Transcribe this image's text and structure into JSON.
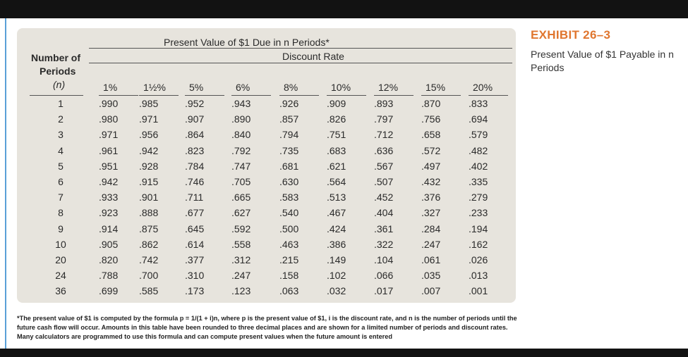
{
  "exhibit": {
    "title": "EXHIBIT 26–3",
    "caption": "Present Value of $1 Payable in n Periods"
  },
  "table": {
    "title": "Present Value of $1 Due in n Periods*",
    "subtitle": "Discount Rate",
    "row_header_line1": "Number of",
    "row_header_line2": "Periods",
    "row_header_line3": "(n)",
    "rates": [
      "1%",
      "1½%",
      "5%",
      "6%",
      "8%",
      "10%",
      "12%",
      "15%",
      "20%"
    ],
    "rows": [
      {
        "n": "1",
        "values": [
          ".990",
          ".985",
          ".952",
          ".943",
          ".926",
          ".909",
          ".893",
          ".870",
          ".833"
        ]
      },
      {
        "n": "2",
        "values": [
          ".980",
          ".971",
          ".907",
          ".890",
          ".857",
          ".826",
          ".797",
          ".756",
          ".694"
        ]
      },
      {
        "n": "3",
        "values": [
          ".971",
          ".956",
          ".864",
          ".840",
          ".794",
          ".751",
          ".712",
          ".658",
          ".579"
        ]
      },
      {
        "n": "4",
        "values": [
          ".961",
          ".942",
          ".823",
          ".792",
          ".735",
          ".683",
          ".636",
          ".572",
          ".482"
        ]
      },
      {
        "n": "5",
        "values": [
          ".951",
          ".928",
          ".784",
          ".747",
          ".681",
          ".621",
          ".567",
          ".497",
          ".402"
        ]
      },
      {
        "n": "6",
        "values": [
          ".942",
          ".915",
          ".746",
          ".705",
          ".630",
          ".564",
          ".507",
          ".432",
          ".335"
        ]
      },
      {
        "n": "7",
        "values": [
          ".933",
          ".901",
          ".711",
          ".665",
          ".583",
          ".513",
          ".452",
          ".376",
          ".279"
        ]
      },
      {
        "n": "8",
        "values": [
          ".923",
          ".888",
          ".677",
          ".627",
          ".540",
          ".467",
          ".404",
          ".327",
          ".233"
        ]
      },
      {
        "n": "9",
        "values": [
          ".914",
          ".875",
          ".645",
          ".592",
          ".500",
          ".424",
          ".361",
          ".284",
          ".194"
        ]
      },
      {
        "n": "10",
        "values": [
          ".905",
          ".862",
          ".614",
          ".558",
          ".463",
          ".386",
          ".322",
          ".247",
          ".162"
        ]
      },
      {
        "n": "20",
        "values": [
          ".820",
          ".742",
          ".377",
          ".312",
          ".215",
          ".149",
          ".104",
          ".061",
          ".026"
        ]
      },
      {
        "n": "24",
        "values": [
          ".788",
          ".700",
          ".310",
          ".247",
          ".158",
          ".102",
          ".066",
          ".035",
          ".013"
        ]
      },
      {
        "n": "36",
        "values": [
          ".699",
          ".585",
          ".173",
          ".123",
          ".063",
          ".032",
          ".017",
          ".007",
          ".001"
        ]
      }
    ]
  },
  "footnote": "*The present value of $1 is computed by the formula p = 1/(1 + i)n, where p is the present value of $1, i is the discount rate, and n is the number of periods until the future cash flow will occur. Amounts in this table have been rounded to three decimal places and are shown for a limited number of periods and discount rates. Many calculators are programmed to use this formula and can compute present values when the future amount is entered",
  "colors": {
    "panel": "#e7e4dd",
    "exhibit_accent": "#e0762f",
    "frame": "#121212"
  }
}
